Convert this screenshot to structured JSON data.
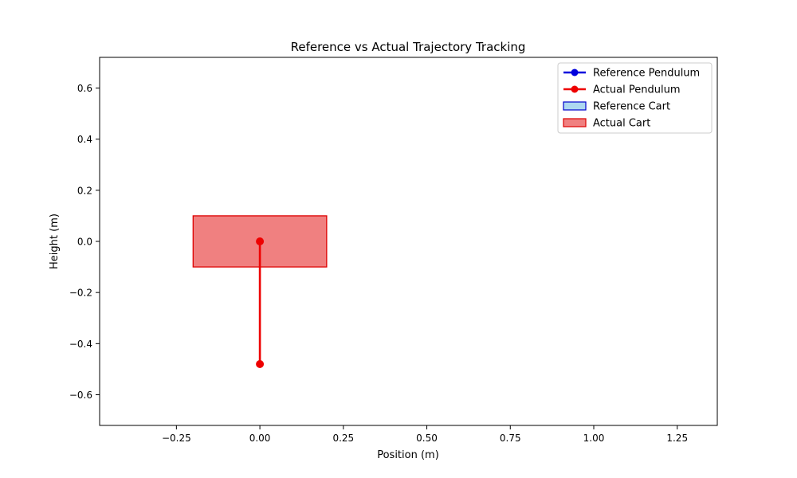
{
  "chart_data": {
    "type": "line",
    "title": "Reference vs Actual Trajectory Tracking",
    "xlabel": "Position (m)",
    "ylabel": "Height (m)",
    "xlim": [
      -0.48,
      1.37
    ],
    "ylim": [
      -0.72,
      0.72
    ],
    "xticks": [
      -0.25,
      0.0,
      0.25,
      0.5,
      0.75,
      1.0,
      1.25
    ],
    "xtick_labels": [
      "−0.25",
      "0.00",
      "0.25",
      "0.50",
      "0.75",
      "1.00",
      "1.25"
    ],
    "yticks": [
      0.6,
      0.4,
      0.2,
      0.0,
      -0.2,
      -0.4,
      -0.6
    ],
    "ytick_labels": [
      "0.6",
      "0.4",
      "0.2",
      "0.0",
      "−0.2",
      "−0.4",
      "−0.6"
    ],
    "grid": false,
    "legend_position": "top-right",
    "legend": [
      {
        "label": "Reference Pendulum",
        "kind": "line-marker",
        "color": "#0000dd"
      },
      {
        "label": "Actual Pendulum",
        "kind": "line-marker",
        "color": "#ee0000"
      },
      {
        "label": "Reference Cart",
        "kind": "patch",
        "face": "#add8f0",
        "edge": "#0000cc"
      },
      {
        "label": "Actual Cart",
        "kind": "patch",
        "face": "#f08080",
        "edge": "#dd0000"
      }
    ],
    "carts": [
      {
        "name": "Actual Cart",
        "x_range": [
          -0.2,
          0.2
        ],
        "y_range": [
          -0.1,
          0.1
        ],
        "face": "#f08080",
        "edge": "#dd0000"
      }
    ],
    "series": [
      {
        "name": "Actual Pendulum",
        "x": [
          0.0,
          0.0
        ],
        "y": [
          0.0,
          -0.48
        ],
        "color": "#ee0000"
      }
    ]
  }
}
